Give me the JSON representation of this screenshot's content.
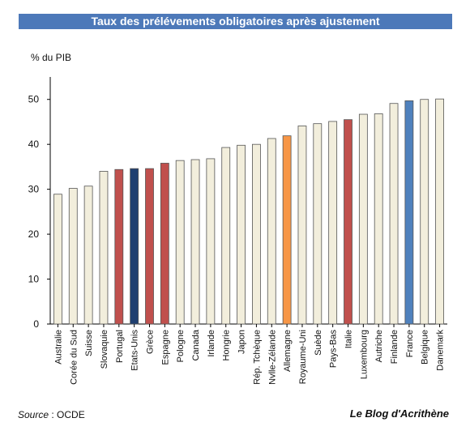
{
  "chart_data": {
    "type": "bar",
    "title": "Taux des prélévements obligatoires après ajustement",
    "ylabel": "% du PIB",
    "xlabel": "",
    "ylim": [
      0,
      55
    ],
    "yticks": [
      0,
      10,
      20,
      30,
      40,
      50
    ],
    "grid": false,
    "categories": [
      "Australie",
      "Corée du Sud",
      "Suisse",
      "Slovaquie",
      "Portugal",
      "Etats-Unis",
      "Grèce",
      "Espagne",
      "Pologne",
      "Canada",
      "Irlande",
      "Hongrie",
      "Japon",
      "Rép. Tchèque",
      "Nvlle-Zélande",
      "Allemagne",
      "Royaume-Uni",
      "Suède",
      "Pays-Bas",
      "Italie",
      "Luxembourg",
      "Autriche",
      "Finlande",
      "France",
      "Belgique",
      "Danemark"
    ],
    "values": [
      28.9,
      30.2,
      30.7,
      34.0,
      34.4,
      34.6,
      34.6,
      35.8,
      36.4,
      36.6,
      36.8,
      39.3,
      39.8,
      40.0,
      41.3,
      41.9,
      44.1,
      44.6,
      45.1,
      45.5,
      46.7,
      46.8,
      49.1,
      49.7,
      50.0,
      50.1
    ],
    "colors": [
      "#f2eedc",
      "#f2eedc",
      "#f2eedc",
      "#f2eedc",
      "#c0504d",
      "#1f3f70",
      "#c0504d",
      "#c0504d",
      "#f2eedc",
      "#f2eedc",
      "#f2eedc",
      "#f2eedc",
      "#f2eedc",
      "#f2eedc",
      "#f2eedc",
      "#f79646",
      "#f2eedc",
      "#f2eedc",
      "#f2eedc",
      "#c0504d",
      "#f2eedc",
      "#f2eedc",
      "#f2eedc",
      "#4f81bd",
      "#f2eedc",
      "#f2eedc"
    ]
  },
  "footer": {
    "source_label": "Source",
    "source_value": " : OCDE",
    "brand": "Le Blog d'Acrithène"
  }
}
